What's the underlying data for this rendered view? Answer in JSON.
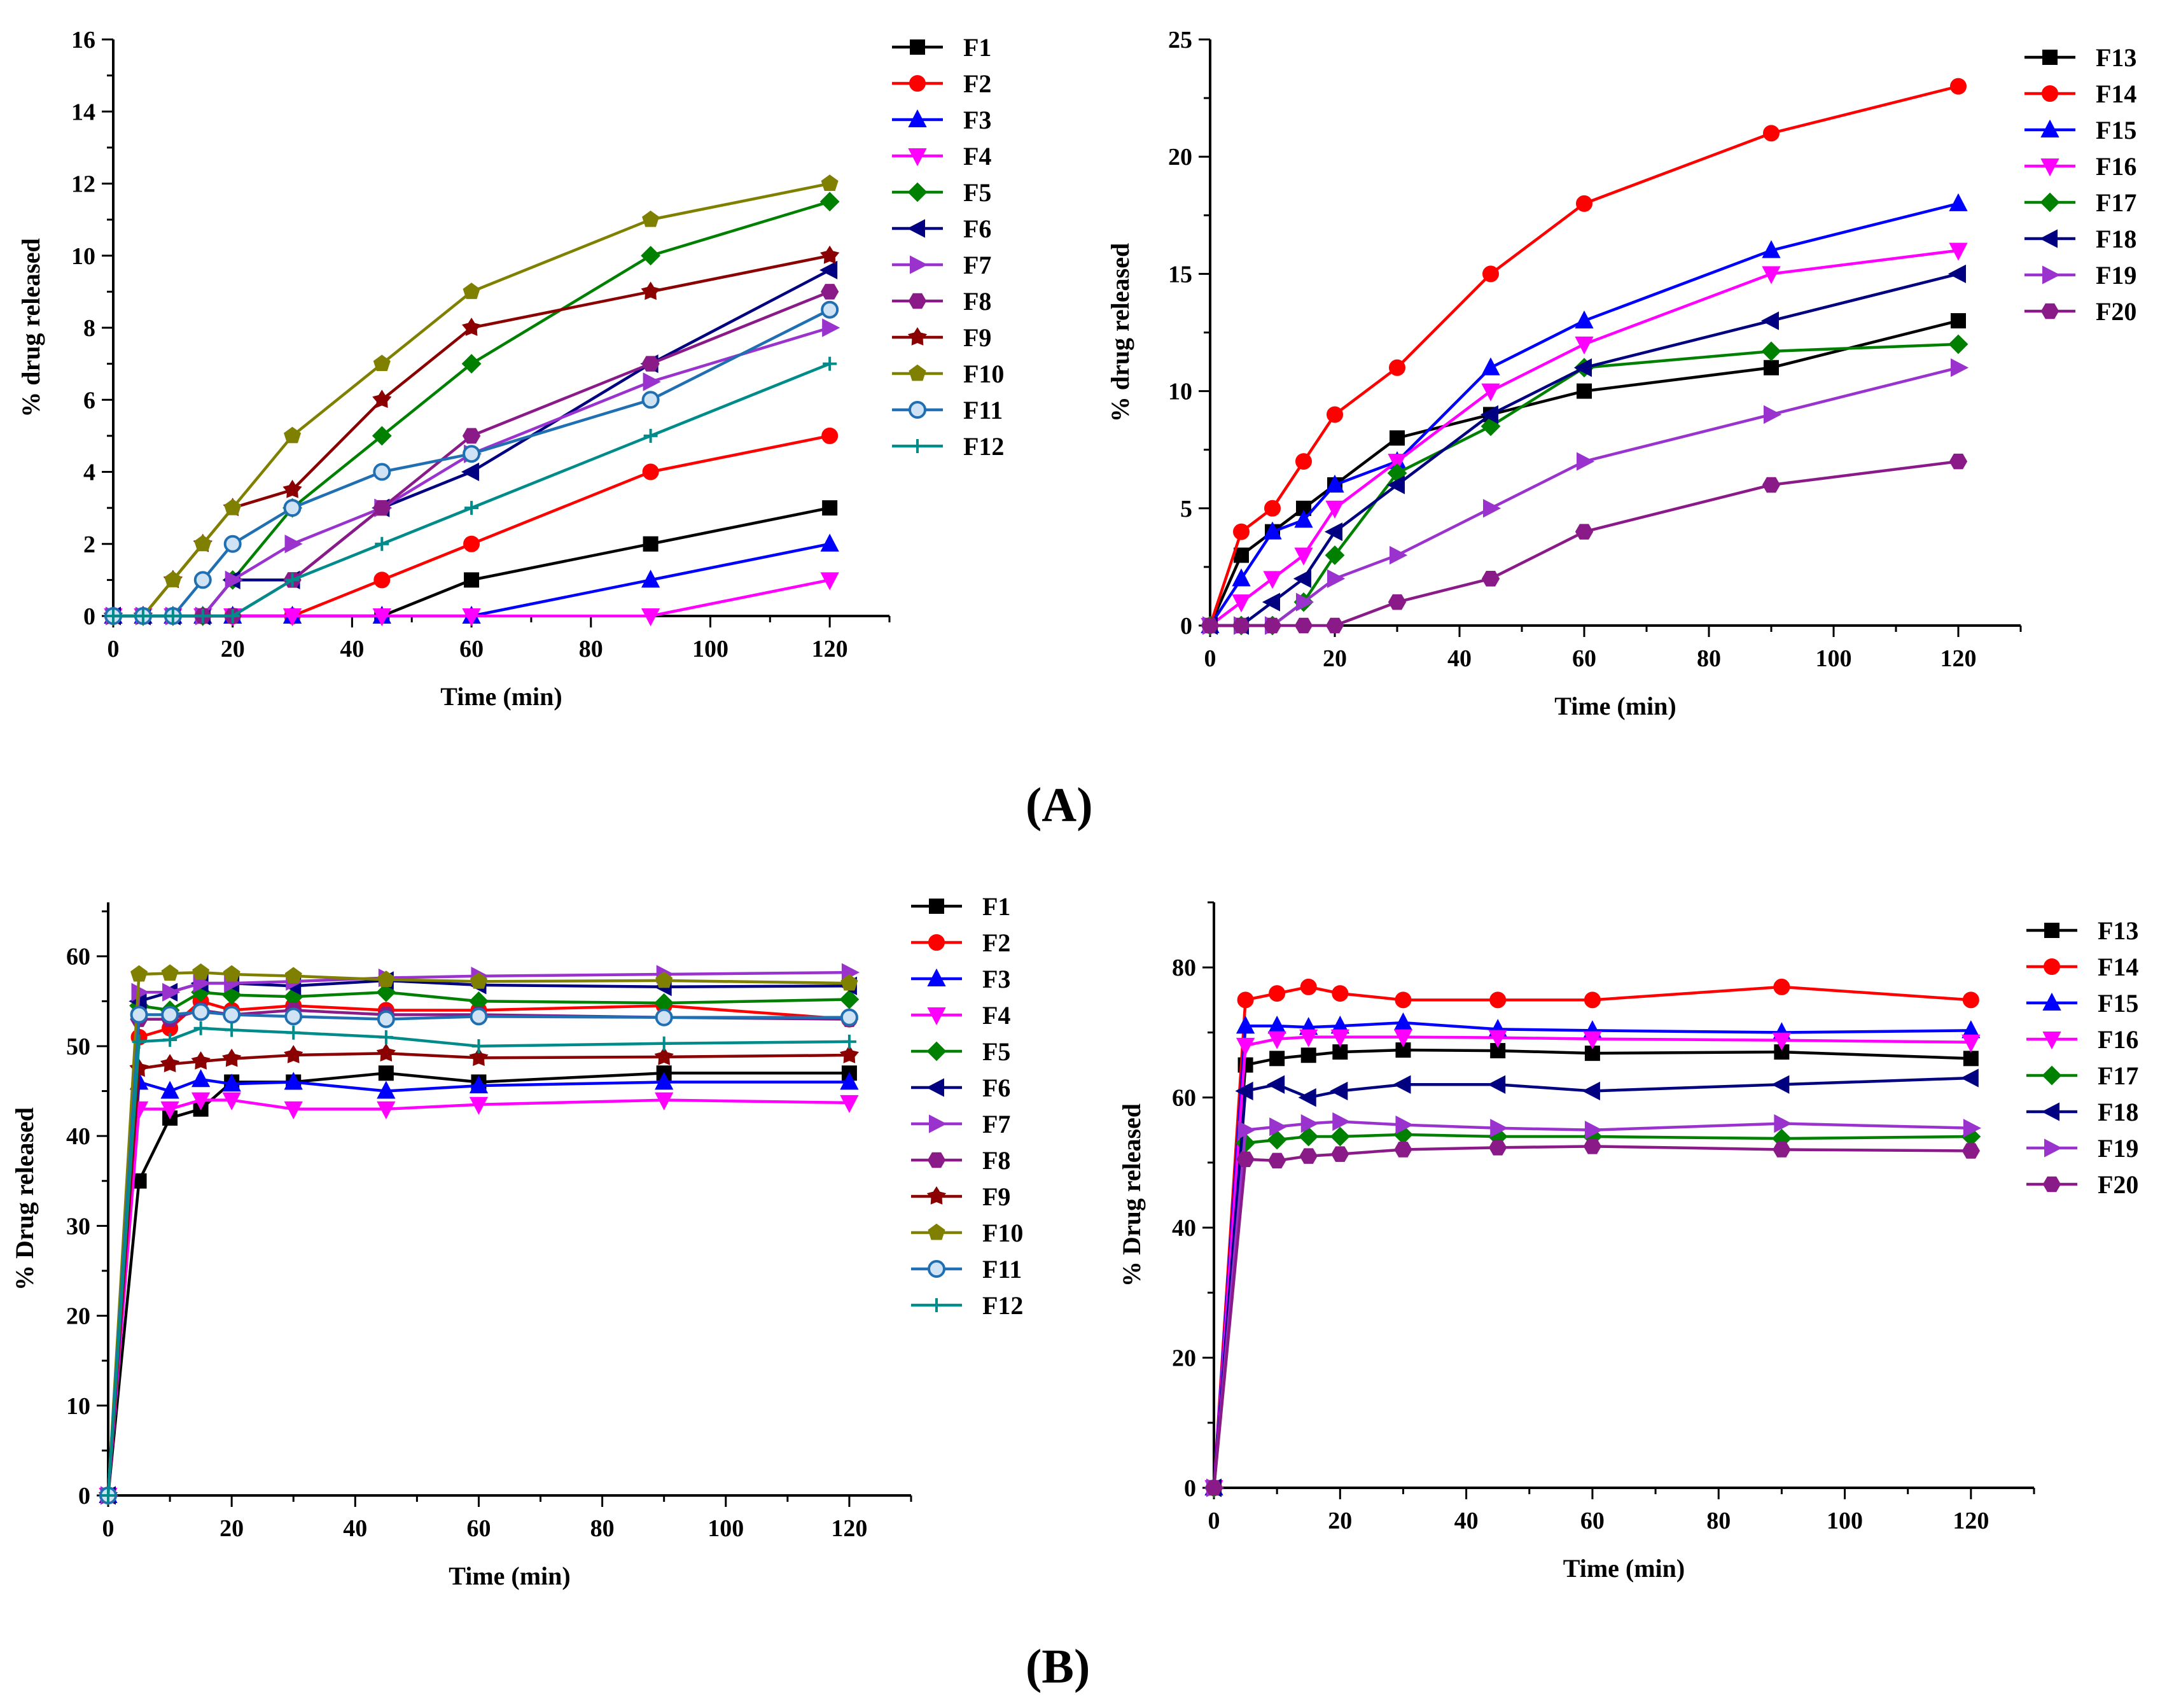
{
  "panel_labels": {
    "a": "(A)",
    "b": "(B)"
  },
  "chart_data": [
    {
      "id": "A-left",
      "type": "line",
      "xlabel": "Time (min)",
      "ylabel": "% drug released",
      "xlim": [
        0,
        130
      ],
      "ylim": [
        0,
        16
      ],
      "xticks": [
        0,
        20,
        40,
        60,
        80,
        100,
        120
      ],
      "yticks": [
        0,
        2,
        4,
        6,
        8,
        10,
        12,
        14,
        16
      ],
      "x": [
        0,
        5,
        10,
        15,
        20,
        30,
        45,
        60,
        90,
        120
      ],
      "series": [
        {
          "name": "F1",
          "color": "#000000",
          "marker": "square",
          "values": [
            0,
            0,
            0,
            0,
            0,
            0,
            0,
            1,
            2,
            3
          ]
        },
        {
          "name": "F2",
          "color": "#ff0000",
          "marker": "circle",
          "values": [
            0,
            0,
            0,
            0,
            0,
            0,
            1,
            2,
            4,
            5
          ]
        },
        {
          "name": "F3",
          "color": "#0000ff",
          "marker": "triangle-up",
          "values": [
            0,
            0,
            0,
            0,
            0,
            0,
            0,
            0,
            1,
            2
          ]
        },
        {
          "name": "F4",
          "color": "#ff00ff",
          "marker": "triangle-down",
          "values": [
            0,
            0,
            0,
            0,
            0,
            0,
            0,
            0,
            0,
            1
          ]
        },
        {
          "name": "F5",
          "color": "#008000",
          "marker": "diamond",
          "values": [
            0,
            0,
            0,
            0,
            1,
            3,
            5,
            7,
            10,
            11.5
          ]
        },
        {
          "name": "F6",
          "color": "#000080",
          "marker": "triangle-left",
          "values": [
            0,
            0,
            0,
            0,
            1,
            1,
            3,
            4,
            7,
            9.6
          ]
        },
        {
          "name": "F7",
          "color": "#9a32cd",
          "marker": "triangle-right",
          "values": [
            0,
            0,
            0,
            0,
            1,
            2,
            3,
            4.5,
            6.5,
            8
          ]
        },
        {
          "name": "F8",
          "color": "#8b1a89",
          "marker": "hexagon",
          "values": [
            0,
            0,
            0,
            0,
            0,
            1,
            3,
            5,
            7,
            9
          ]
        },
        {
          "name": "F9",
          "color": "#8b0000",
          "marker": "star",
          "values": [
            0,
            0,
            1,
            2,
            3,
            3.5,
            6,
            8,
            9,
            10
          ]
        },
        {
          "name": "F10",
          "color": "#808000",
          "marker": "pentagon",
          "values": [
            0,
            0,
            1,
            2,
            3,
            5,
            7,
            9,
            11,
            12
          ]
        },
        {
          "name": "F11",
          "color": "#1f6fb2",
          "marker": "circle-half",
          "values": [
            0,
            0,
            0,
            1,
            2,
            3,
            4,
            4.5,
            6,
            8.5
          ]
        },
        {
          "name": "F12",
          "color": "#008b8b",
          "marker": "plus",
          "values": [
            0,
            0,
            0,
            0,
            0,
            1,
            2,
            3,
            5,
            7
          ]
        }
      ]
    },
    {
      "id": "A-right",
      "type": "line",
      "xlabel": "Time (min)",
      "ylabel": "% drug released",
      "xlim": [
        0,
        130
      ],
      "ylim": [
        0,
        25
      ],
      "xticks": [
        0,
        20,
        40,
        60,
        80,
        100,
        120
      ],
      "yticks": [
        0,
        5,
        10,
        15,
        20,
        25
      ],
      "x": [
        0,
        5,
        10,
        15,
        20,
        30,
        45,
        60,
        90,
        120
      ],
      "series": [
        {
          "name": "F13",
          "color": "#000000",
          "marker": "square",
          "values": [
            0,
            3,
            4,
            5,
            6,
            8,
            9,
            10,
            11,
            13
          ]
        },
        {
          "name": "F14",
          "color": "#ff0000",
          "marker": "circle",
          "values": [
            0,
            4,
            5,
            7,
            9,
            11,
            15,
            18,
            21,
            23
          ]
        },
        {
          "name": "F15",
          "color": "#0000ff",
          "marker": "triangle-up",
          "values": [
            0,
            2,
            4,
            4.5,
            6,
            7,
            11,
            13,
            16,
            18
          ]
        },
        {
          "name": "F16",
          "color": "#ff00ff",
          "marker": "triangle-down",
          "values": [
            0,
            1,
            2,
            3,
            5,
            7,
            10,
            12,
            15,
            16
          ]
        },
        {
          "name": "F17",
          "color": "#008000",
          "marker": "diamond",
          "values": [
            0,
            0,
            0,
            1,
            3,
            6.5,
            8.5,
            11,
            11.7,
            12
          ]
        },
        {
          "name": "F18",
          "color": "#000080",
          "marker": "triangle-left",
          "values": [
            0,
            0,
            1,
            2,
            4,
            6,
            9,
            11,
            13,
            15
          ]
        },
        {
          "name": "F19",
          "color": "#9a32cd",
          "marker": "triangle-right",
          "values": [
            0,
            0,
            0,
            1,
            2,
            3,
            5,
            7,
            9,
            11
          ]
        },
        {
          "name": "F20",
          "color": "#8b1a89",
          "marker": "hexagon",
          "values": [
            0,
            0,
            0,
            0,
            0,
            1,
            2,
            4,
            6,
            7
          ]
        }
      ]
    },
    {
      "id": "B-left",
      "type": "line",
      "xlabel": "Time (min)",
      "ylabel": "% Drug released",
      "xlim": [
        0,
        130
      ],
      "ylim": [
        0,
        66
      ],
      "xticks": [
        0,
        20,
        40,
        60,
        80,
        100,
        120
      ],
      "yticks": [
        0,
        10,
        20,
        30,
        40,
        50,
        60
      ],
      "x": [
        0,
        5,
        10,
        15,
        20,
        30,
        45,
        60,
        90,
        120
      ],
      "series": [
        {
          "name": "F1",
          "color": "#000000",
          "marker": "square",
          "values": [
            0,
            35,
            42,
            43,
            46,
            46,
            47,
            46,
            47,
            47
          ]
        },
        {
          "name": "F2",
          "color": "#ff0000",
          "marker": "circle",
          "values": [
            0,
            51,
            52,
            55,
            54,
            54.5,
            54,
            54,
            54.5,
            53
          ]
        },
        {
          "name": "F3",
          "color": "#0000ff",
          "marker": "triangle-up",
          "values": [
            0,
            46,
            45,
            46.3,
            45.8,
            46,
            45,
            45.6,
            46,
            46
          ]
        },
        {
          "name": "F4",
          "color": "#ff00ff",
          "marker": "triangle-down",
          "values": [
            0,
            43,
            43,
            44,
            44,
            43,
            43,
            43.5,
            44,
            43.7
          ]
        },
        {
          "name": "F5",
          "color": "#008000",
          "marker": "diamond",
          "values": [
            0,
            54.5,
            54,
            56,
            55.7,
            55.5,
            56,
            55,
            54.8,
            55.2
          ]
        },
        {
          "name": "F6",
          "color": "#000080",
          "marker": "triangle-left",
          "values": [
            0,
            55,
            56,
            57,
            57,
            56.7,
            57.3,
            56.8,
            56.6,
            56.7
          ]
        },
        {
          "name": "F7",
          "color": "#9a32cd",
          "marker": "triangle-right",
          "values": [
            0,
            56,
            56,
            57,
            57,
            57.2,
            57.6,
            57.8,
            58,
            58.2
          ]
        },
        {
          "name": "F8",
          "color": "#8b1a89",
          "marker": "hexagon",
          "values": [
            0,
            53,
            53,
            54,
            53.5,
            54,
            53.5,
            53.5,
            53.2,
            53
          ]
        },
        {
          "name": "F9",
          "color": "#8b0000",
          "marker": "star",
          "values": [
            0,
            47.5,
            48,
            48.3,
            48.6,
            49,
            49.2,
            48.7,
            48.8,
            49
          ]
        },
        {
          "name": "F10",
          "color": "#808000",
          "marker": "pentagon",
          "values": [
            0,
            58,
            58.1,
            58.2,
            58,
            57.8,
            57.4,
            57.2,
            57.3,
            57
          ]
        },
        {
          "name": "F11",
          "color": "#1f6fb2",
          "marker": "circle-half",
          "values": [
            0,
            53.5,
            53.5,
            53.8,
            53.5,
            53.3,
            53,
            53.3,
            53.2,
            53.2
          ]
        },
        {
          "name": "F12",
          "color": "#008b8b",
          "marker": "plus",
          "values": [
            0,
            50.5,
            50.7,
            52,
            51.8,
            51.5,
            51,
            50,
            50.3,
            50.5
          ]
        }
      ]
    },
    {
      "id": "B-right",
      "type": "line",
      "xlabel": "Time (min)",
      "ylabel": "% Drug released",
      "xlim": [
        0,
        130
      ],
      "ylim": [
        0,
        90
      ],
      "xticks": [
        0,
        20,
        40,
        60,
        80,
        100,
        120
      ],
      "yticks": [
        0,
        20,
        40,
        60,
        80
      ],
      "x": [
        0,
        5,
        10,
        15,
        20,
        30,
        45,
        60,
        90,
        120
      ],
      "series": [
        {
          "name": "F13",
          "color": "#000000",
          "marker": "square",
          "values": [
            0,
            65,
            66,
            66.5,
            67,
            67.3,
            67.2,
            66.8,
            67,
            66
          ]
        },
        {
          "name": "F14",
          "color": "#ff0000",
          "marker": "circle",
          "values": [
            0,
            75,
            76,
            77,
            76,
            75,
            75,
            75,
            77,
            75
          ]
        },
        {
          "name": "F15",
          "color": "#0000ff",
          "marker": "triangle-up",
          "values": [
            0,
            71,
            71,
            70.8,
            71,
            71.5,
            70.5,
            70.3,
            70,
            70.3
          ]
        },
        {
          "name": "F16",
          "color": "#ff00ff",
          "marker": "triangle-down",
          "values": [
            0,
            68,
            69,
            69.3,
            69.3,
            69.3,
            69.2,
            69,
            68.8,
            68.5
          ]
        },
        {
          "name": "F17",
          "color": "#008000",
          "marker": "diamond",
          "values": [
            0,
            53,
            53.5,
            54,
            54,
            54.3,
            54,
            54,
            53.7,
            54
          ]
        },
        {
          "name": "F18",
          "color": "#000080",
          "marker": "triangle-left",
          "values": [
            0,
            61,
            62,
            60,
            61,
            62,
            62,
            61,
            62,
            63
          ]
        },
        {
          "name": "F19",
          "color": "#9a32cd",
          "marker": "triangle-right",
          "values": [
            0,
            55,
            55.5,
            56,
            56.3,
            55.8,
            55.3,
            55,
            56,
            55.3
          ]
        },
        {
          "name": "F20",
          "color": "#8b1a89",
          "marker": "hexagon",
          "values": [
            0,
            50.5,
            50.3,
            51,
            51.3,
            52,
            52.3,
            52.5,
            52,
            51.8
          ]
        }
      ]
    }
  ]
}
